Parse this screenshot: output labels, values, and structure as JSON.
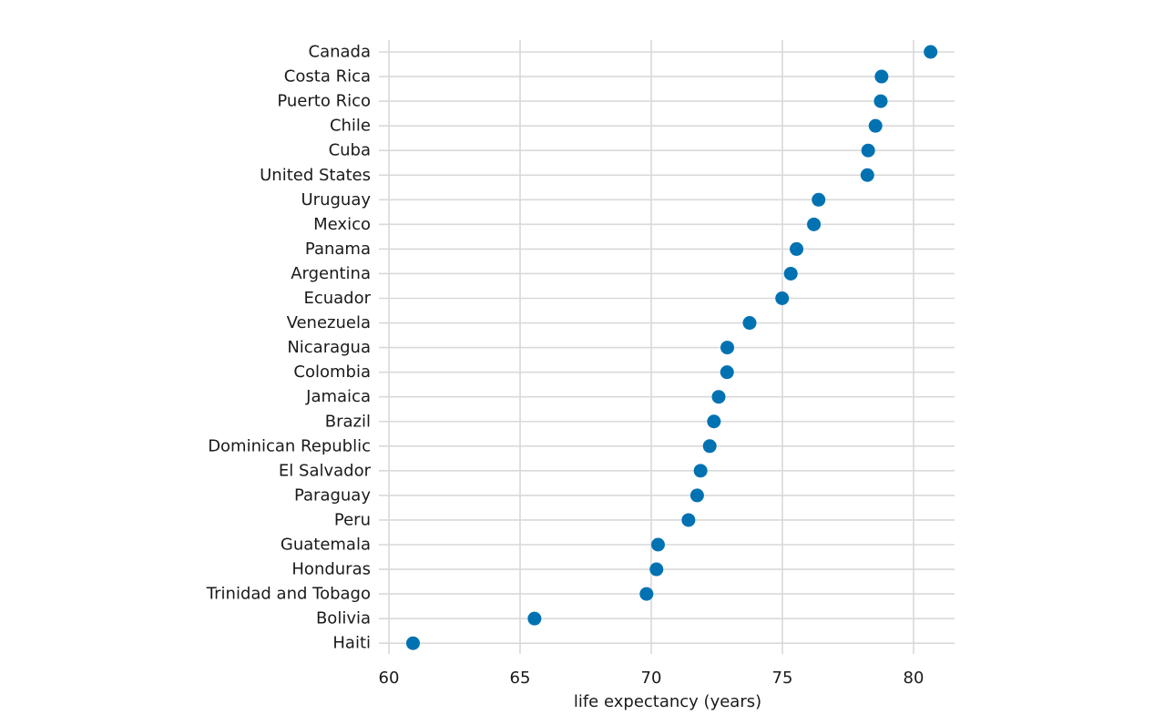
{
  "chart_data": {
    "type": "scatter",
    "title": "",
    "xlabel": "life expectancy (years)",
    "ylabel": "",
    "xlim": [
      60,
      81.5
    ],
    "xticks": [
      60,
      65,
      70,
      75,
      80
    ],
    "grid": true,
    "legend": "none",
    "colors": {
      "point": "#0072b2",
      "grid": "#d9d9d9",
      "text": "#1a1a1a"
    },
    "categories": [
      "Canada",
      "Costa Rica",
      "Puerto Rico",
      "Chile",
      "Cuba",
      "United States",
      "Uruguay",
      "Mexico",
      "Panama",
      "Argentina",
      "Ecuador",
      "Venezuela",
      "Nicaragua",
      "Colombia",
      "Jamaica",
      "Brazil",
      "Dominican Republic",
      "El Salvador",
      "Paraguay",
      "Peru",
      "Guatemala",
      "Honduras",
      "Trinidad and Tobago",
      "Bolivia",
      "Haiti"
    ],
    "values": [
      80.65,
      78.78,
      78.75,
      78.55,
      78.27,
      78.24,
      76.38,
      76.2,
      75.54,
      75.32,
      74.99,
      73.75,
      72.9,
      72.89,
      72.57,
      72.39,
      72.23,
      71.88,
      71.75,
      71.42,
      70.26,
      70.2,
      69.82,
      65.55,
      60.92
    ]
  }
}
